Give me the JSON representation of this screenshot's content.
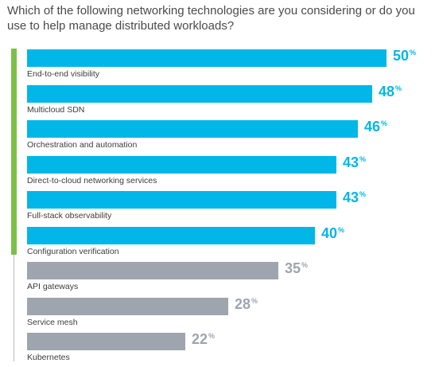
{
  "question": "Which of the following networking technologies are you considering or do you use to help manage distributed workloads?",
  "colors": {
    "highlight": "#00b7e8",
    "muted": "#9ea5ae",
    "accent_green": "#7cc04a"
  },
  "chart_data": {
    "type": "bar",
    "orientation": "horizontal",
    "title": "",
    "xlim": [
      0,
      50
    ],
    "grid": false,
    "categories": [
      "End-to-end visibility",
      "Multicloud SDN",
      "Orchestration and automation",
      "Direct-to-cloud networking services",
      "Full-stack observability",
      "Configuration verification",
      "API gateways",
      "Service mesh",
      "Kubernetes"
    ],
    "values": [
      50,
      48,
      46,
      43,
      43,
      40,
      35,
      28,
      22
    ],
    "value_suffix": "%",
    "highlighted": [
      true,
      true,
      true,
      true,
      true,
      true,
      false,
      false,
      false
    ]
  }
}
